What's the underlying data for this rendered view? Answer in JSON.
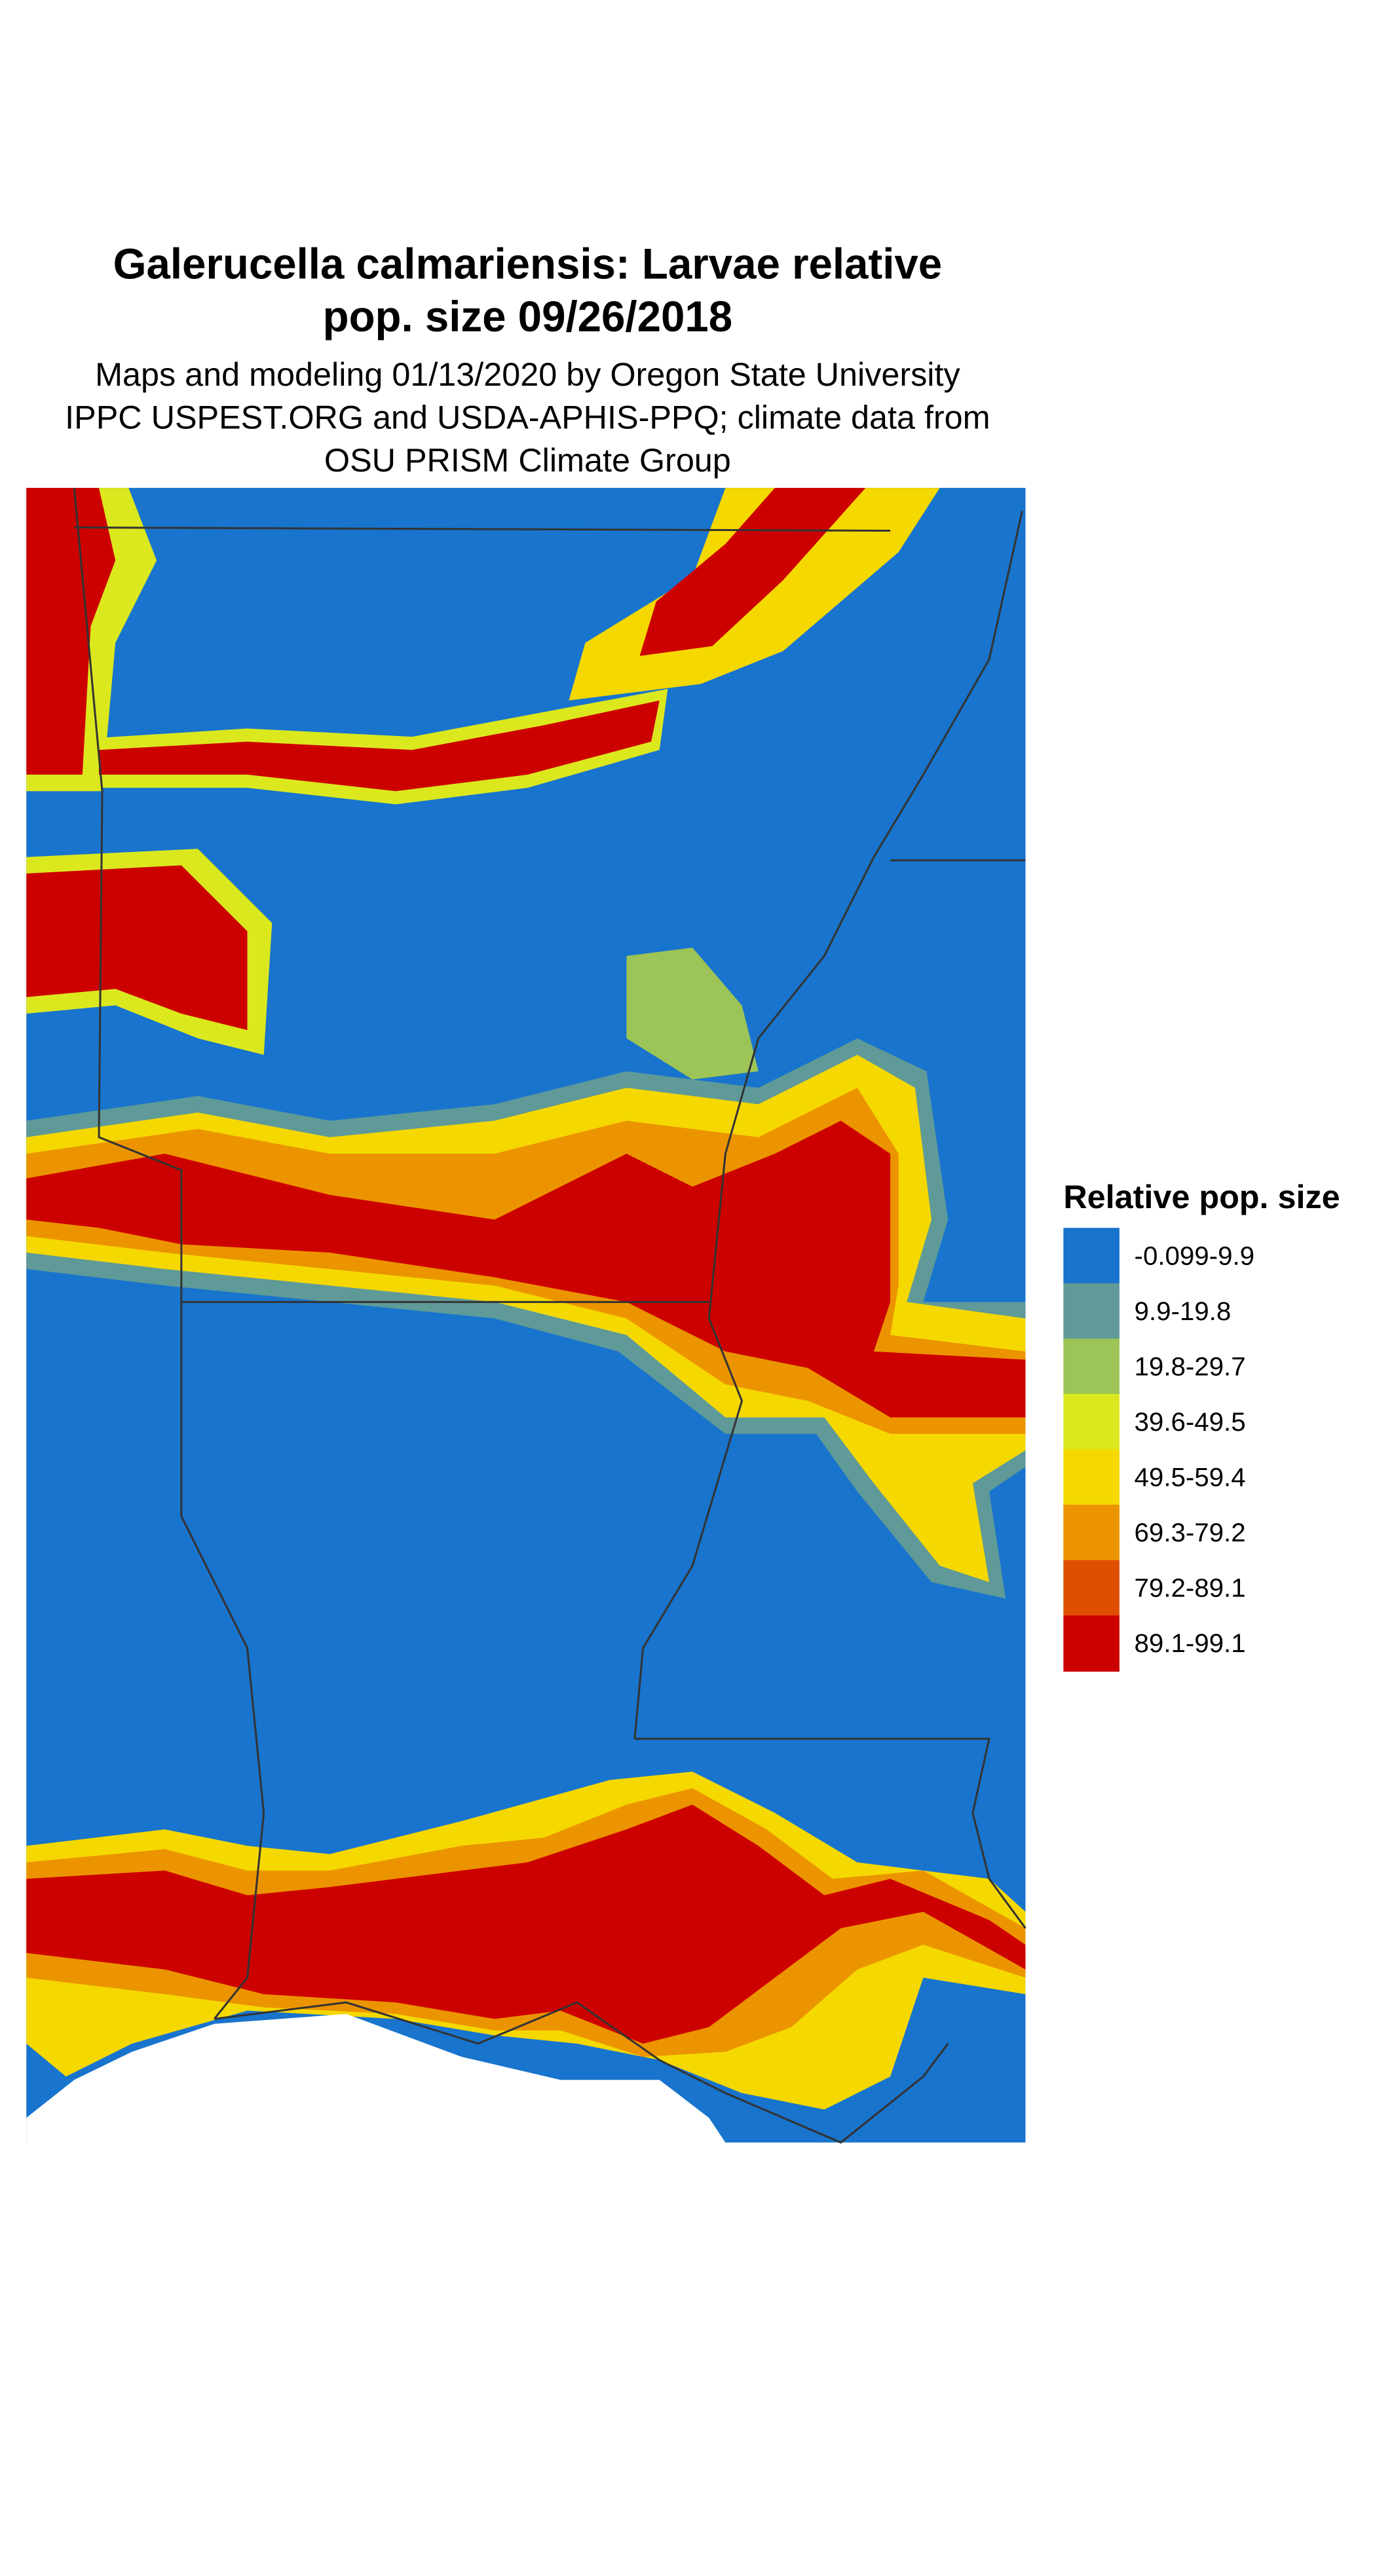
{
  "header": {
    "title": [
      "Galerucella calmariensis: Larvae relative",
      "pop. size 09/26/2018"
    ],
    "subtitle": [
      "Maps and modeling 01/13/2020 by Oregon State University",
      "IPPC USPEST.ORG and USDA-APHIS-PPQ; climate data from",
      "OSU PRISM Climate Group"
    ]
  },
  "legend": {
    "title": "Relative pop. size",
    "items": [
      {
        "label": "-0.099-9.9",
        "color": "#1874cd"
      },
      {
        "label": "9.9-19.8",
        "color": "#5f9a98"
      },
      {
        "label": "19.8-29.7",
        "color": "#9cc456"
      },
      {
        "label": "39.6-49.5",
        "color": "#dce81e"
      },
      {
        "label": "49.5-59.4",
        "color": "#f5d800"
      },
      {
        "label": "69.3-79.2",
        "color": "#ec9400"
      },
      {
        "label": "79.2-89.1",
        "color": "#e04e00"
      },
      {
        "label": "89.1-99.1",
        "color": "#cd0000"
      }
    ]
  }
}
